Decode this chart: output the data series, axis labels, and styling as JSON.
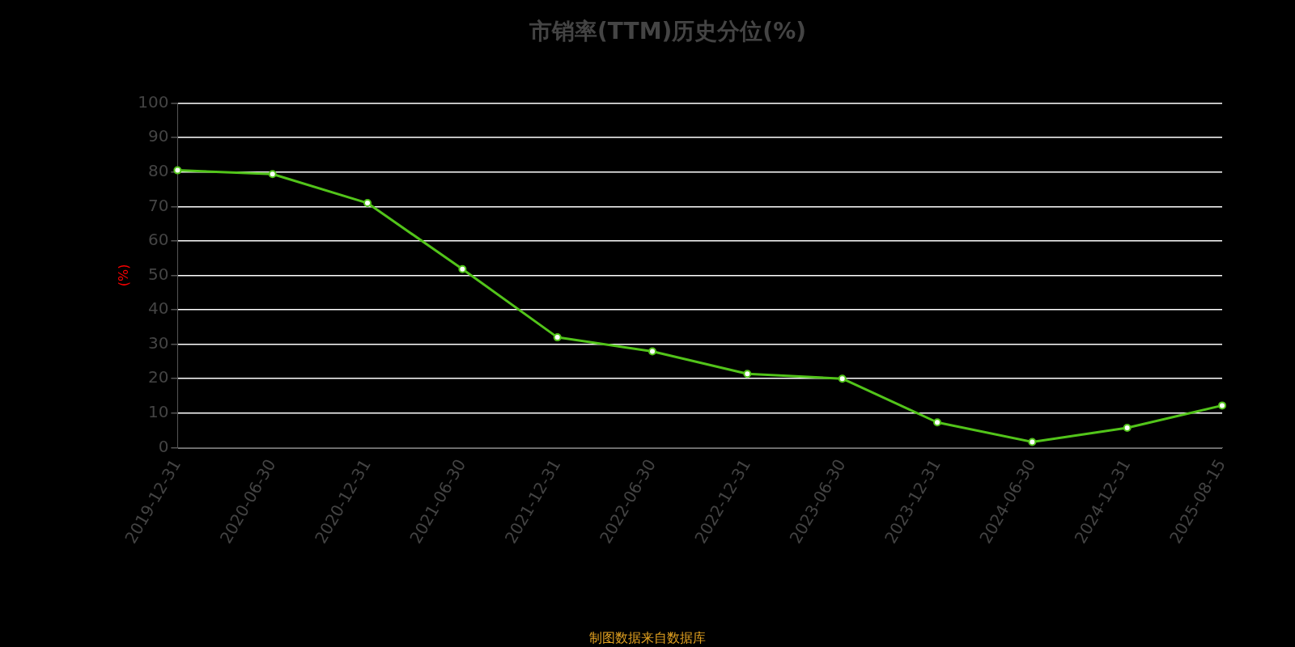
{
  "chart_data": {
    "type": "line",
    "title": "市销率(TTM)历史分位(%)",
    "ylabel": "(%)",
    "categories": [
      "2019-12-31",
      "2020-06-30",
      "2020-12-31",
      "2021-06-30",
      "2021-12-31",
      "2022-06-30",
      "2022-12-31",
      "2023-06-30",
      "2023-12-31",
      "2024-06-30",
      "2024-12-31",
      "2025-08-15"
    ],
    "series": [
      {
        "color": "#52c41a",
        "values": [
          80.5,
          79.4,
          71,
          51.8,
          32,
          27.9,
          21.4,
          20,
          7.3,
          1.6,
          5.7,
          12.2
        ]
      }
    ],
    "ylim": [
      0,
      100
    ],
    "yticks": [
      0,
      10,
      20,
      30,
      40,
      50,
      60,
      70,
      80,
      90,
      100
    ],
    "grid": "y",
    "marker": "circle",
    "line_style": "solid",
    "annotations": [
      "制图数据来自数据库"
    ]
  }
}
